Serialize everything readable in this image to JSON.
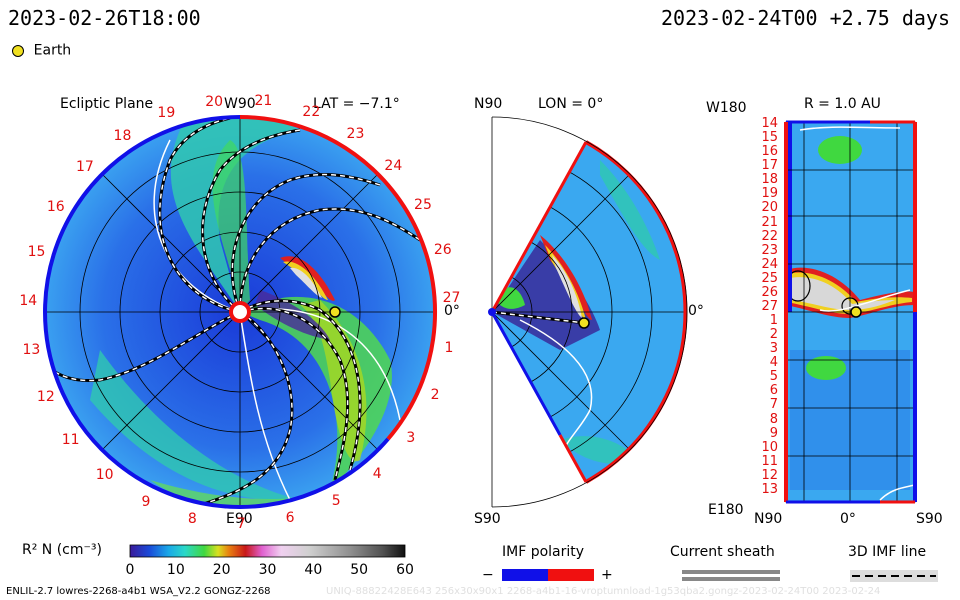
{
  "header": {
    "obs_time": "2023-02-26T18:00",
    "run_info": "2023-02-24T00 +2.75 days",
    "legend_earth": "Earth"
  },
  "panel_ecliptic": {
    "title": "Ecliptic Plane",
    "top_label": "W90",
    "bottom_label": "E90",
    "right_label": "0°",
    "lat_label": "LAT = −7.1°",
    "ticks": [
      "20",
      "21",
      "22",
      "23",
      "24",
      "25",
      "26",
      "27",
      "1",
      "2",
      "3",
      "4",
      "5",
      "6",
      "7",
      "8",
      "9",
      "10",
      "11",
      "12",
      "13",
      "14",
      "15",
      "16",
      "17",
      "18",
      "19"
    ]
  },
  "panel_meridional": {
    "top_left": "N90",
    "bottom_left": "S90",
    "lon_label": "LON = 0°",
    "right_label": "0°"
  },
  "panel_radial": {
    "r_label": "R = 1.0 AU",
    "top_left": "W180",
    "bottom_left": "E180",
    "x_left": "N90",
    "x_mid": "0°",
    "x_right": "S90",
    "ticks": [
      "14",
      "15",
      "16",
      "17",
      "18",
      "19",
      "20",
      "21",
      "22",
      "23",
      "24",
      "25",
      "26",
      "27",
      "1",
      "2",
      "3",
      "4",
      "5",
      "6",
      "7",
      "8",
      "9",
      "10",
      "11",
      "12",
      "13"
    ]
  },
  "colorbar": {
    "label": "R² N (cm⁻³)",
    "ticks": [
      "0",
      "10",
      "20",
      "30",
      "40",
      "50",
      "60"
    ],
    "colors": [
      "#3a1a9a",
      "#1a4ad8",
      "#1aa8e8",
      "#2ad8c8",
      "#40d840",
      "#d8e020",
      "#e88010",
      "#c81818",
      "#e060d0",
      "#f0d0f0",
      "#d0d0d0",
      "#909090",
      "#505050",
      "#101010"
    ]
  },
  "legends": {
    "imf_title": "IMF polarity",
    "imf_minus": "−",
    "imf_plus": "+",
    "imf_neg_color": "#1010e8",
    "imf_pos_color": "#f01010",
    "sheath_title": "Current sheath",
    "imf_line_title": "3D IMF line"
  },
  "footer": {
    "model": "ENLIL-2.7 lowres-2268-a4b1 WSA_V2.2 GONGZ-2268",
    "watermark": "UNIQ-88822428E643 256x30x90x1 2268-a4b1-16-vroptumnload-1g53qba2.gongz-2023-02-24T00 2023-02-24"
  }
}
